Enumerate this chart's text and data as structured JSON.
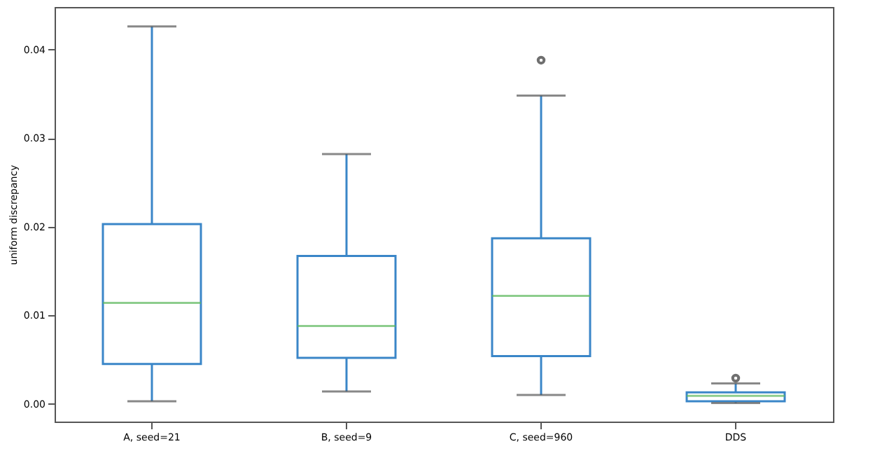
{
  "chart_data": {
    "type": "box",
    "ylabel": "uniform discrepancy",
    "categories": [
      "A, seed=21",
      "B, seed=9",
      "C, seed=960",
      "DDS"
    ],
    "boxes": [
      {
        "low": 0.0003,
        "q1": 0.0045,
        "median": 0.0114,
        "q3": 0.0203,
        "high": 0.0426
      },
      {
        "low": 0.0014,
        "q1": 0.0052,
        "median": 0.0088,
        "q3": 0.0167,
        "high": 0.0282
      },
      {
        "low": 0.001,
        "q1": 0.0054,
        "median": 0.0122,
        "q3": 0.0187,
        "high": 0.0348,
        "outliers": [
          0.0388
        ]
      },
      {
        "low": 0.0001,
        "q1": 0.0003,
        "median": 0.0009,
        "q3": 0.0013,
        "high": 0.0023,
        "outliers": [
          0.0029
        ]
      }
    ],
    "color": "#3a86c8",
    "ylim": [
      -0.002,
      0.0448
    ],
    "yticks": [
      {
        "value": 0,
        "label": "0.00"
      },
      {
        "value": 0.01,
        "label": "0.01"
      },
      {
        "value": 0.02,
        "label": "0.02"
      },
      {
        "value": 0.03,
        "label": "0.03"
      },
      {
        "value": 0.04,
        "label": "0.04"
      }
    ],
    "grid": false
  }
}
